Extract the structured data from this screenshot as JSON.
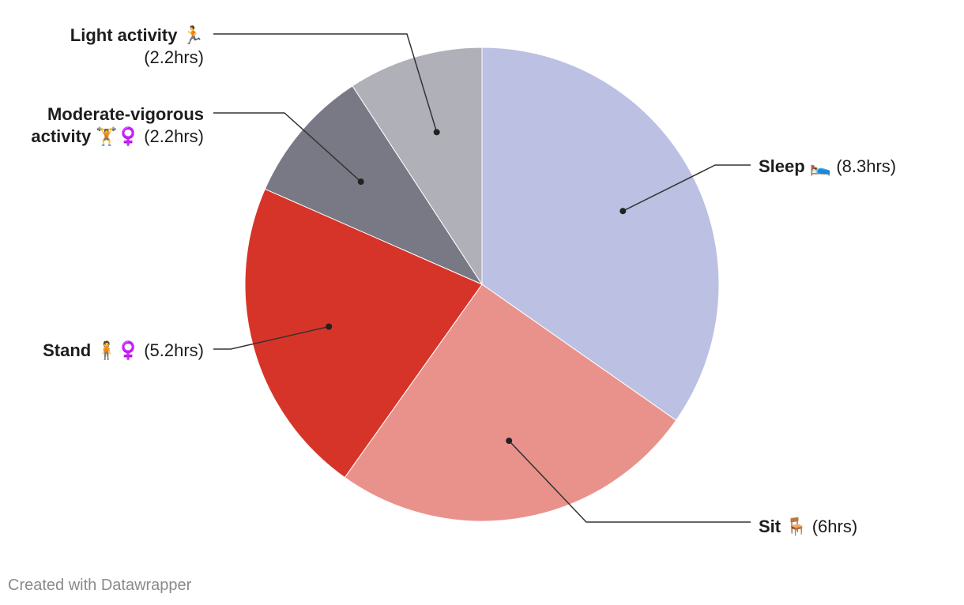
{
  "chart_data": {
    "type": "pie",
    "start_angle_deg": 0,
    "direction": "clockwise",
    "slices": [
      {
        "label": "Sleep",
        "emoji": "🛌",
        "value": 8.3,
        "value_label": "(8.3hrs)",
        "color": "#bcc0e2"
      },
      {
        "label": "Sit",
        "emoji": "🪑",
        "value": 6.0,
        "value_label": "(6hrs)",
        "color": "#e9928b"
      },
      {
        "label": "Stand",
        "emoji": "🧍♀️",
        "value": 5.2,
        "value_label": "(5.2hrs)",
        "color": "#d73429"
      },
      {
        "label": "Moderate-vigorous activity",
        "label_lines": [
          "Moderate-vigorous",
          "activity"
        ],
        "emoji": "🏋️♀️",
        "value": 2.2,
        "value_label": "(2.2hrs)",
        "color": "#797885"
      },
      {
        "label": "Light activity",
        "emoji": "🏃",
        "value": 2.2,
        "value_label": "(2.2hrs)",
        "color": "#b0b0b8"
      }
    ]
  },
  "footer": {
    "credit": "Created with Datawrapper"
  }
}
